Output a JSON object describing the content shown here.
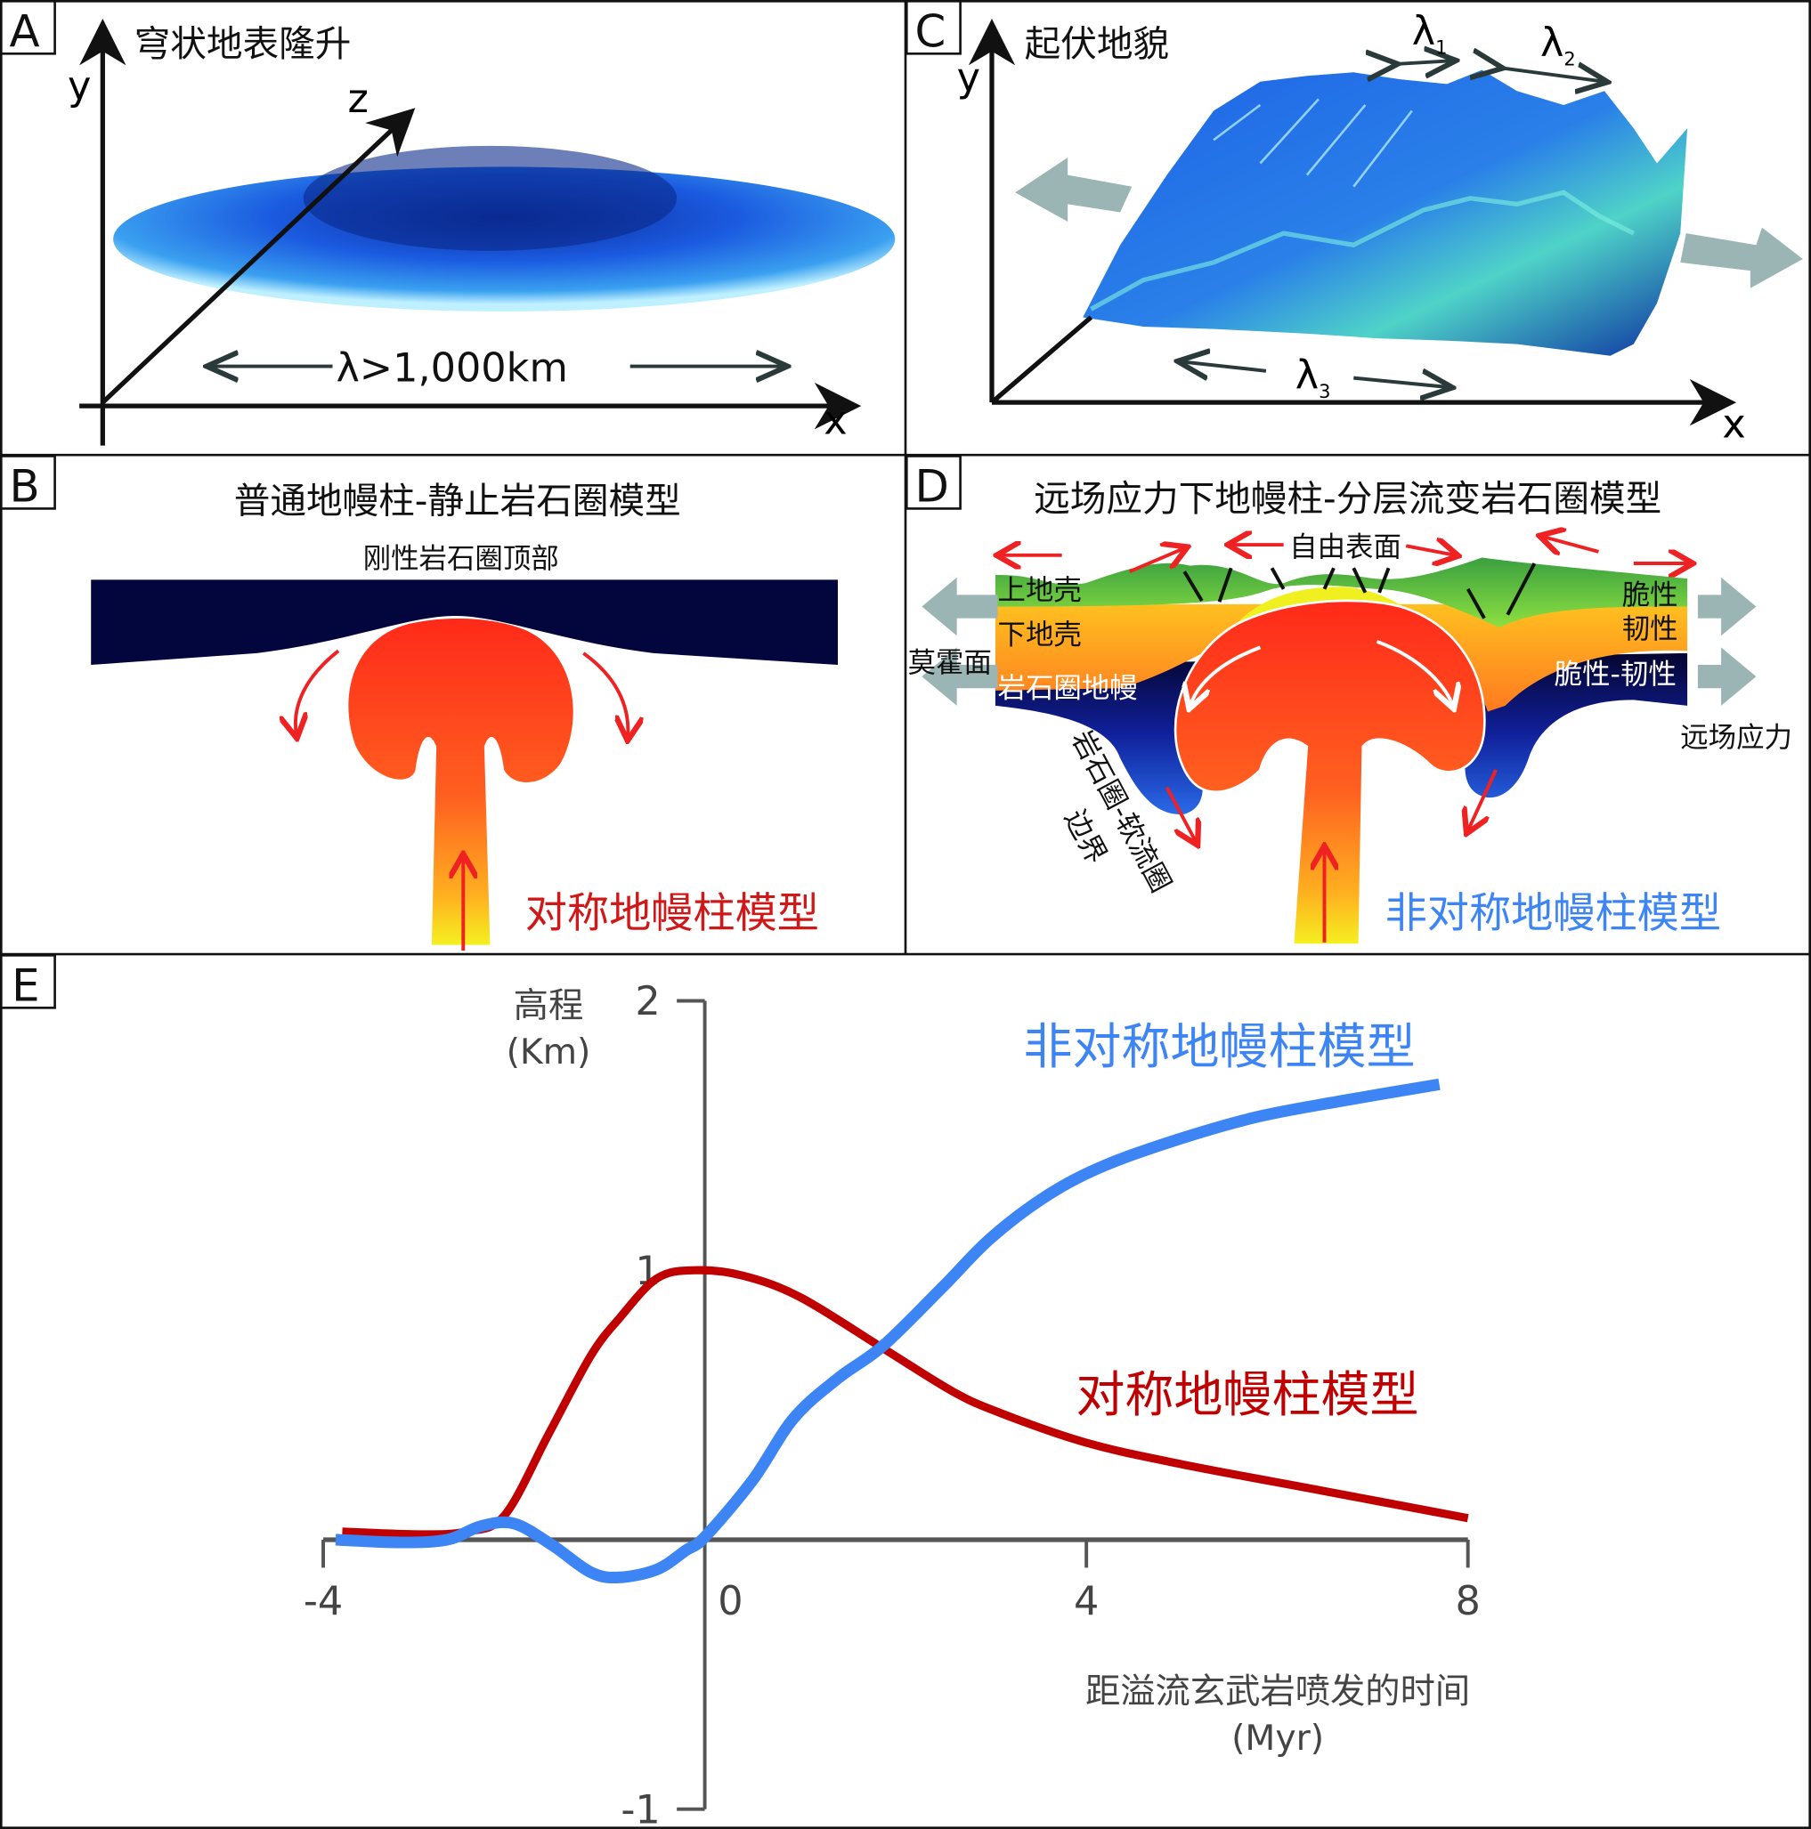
{
  "panels": {
    "A": {
      "letter": "A",
      "title": "穹状地表隆升",
      "axis_y": "y",
      "axis_x": "x",
      "axis_z": "z",
      "wavelength": "λ>1,000km"
    },
    "B": {
      "letter": "B",
      "title": "普通地幔柱-静止岩石圈模型",
      "top_label": "刚性岩石圈顶部",
      "model_label": "对称地幔柱模型"
    },
    "C": {
      "letter": "C",
      "title": "起伏地貌",
      "axis_y": "y",
      "axis_x": "x",
      "lambda1": "λ",
      "lambda1_sub": "1",
      "lambda2": "λ",
      "lambda2_sub": "2",
      "lambda3": "λ",
      "lambda3_sub": "3"
    },
    "D": {
      "letter": "D",
      "title": "远场应力下地幔柱-分层流变岩石圈模型",
      "free_surface": "自由表面",
      "upper_crust": "上地壳",
      "lower_crust": "下地壳",
      "moho": "莫霍面",
      "lith_mantle": "岩石圈地幔",
      "brittle": "脆性",
      "ductile": "韧性",
      "brittle_ductile": "脆性-韧性",
      "far_field": "远场应力",
      "lab_line1": "岩石圈-软流圈",
      "lab_line2": "边界",
      "model_label": "非对称地幔柱模型"
    },
    "E": {
      "letter": "E"
    }
  },
  "colors": {
    "symmetric": "#c00000",
    "asymmetric": "#3d85f5"
  },
  "chart_data": {
    "type": "line",
    "title": "",
    "ylabel_line1": "高程",
    "ylabel_line2": "(Km)",
    "xlabel_line1": "距溢流玄武岩喷发的时间",
    "xlabel_line2": "(Myr)",
    "xlim": [
      -4,
      8
    ],
    "ylim": [
      -1,
      2
    ],
    "xticks": [
      "-4",
      "0",
      "4",
      "8"
    ],
    "yticks": [
      "2",
      "1",
      "-1"
    ],
    "grid": false,
    "series": [
      {
        "name": "对称地幔柱模型",
        "color": "#c00000",
        "x": [
          -3.8,
          -3.0,
          -2.5,
          -2.1,
          -1.64,
          -1.2,
          -0.9,
          -0.5,
          -0.1,
          0.4,
          1.0,
          1.87,
          2.6,
          3.1,
          4.0,
          5.0,
          6.5,
          8.0
        ],
        "y": [
          0.03,
          0.02,
          0.03,
          0.09,
          0.39,
          0.68,
          0.82,
          0.97,
          1.0,
          0.98,
          0.9,
          0.71,
          0.55,
          0.47,
          0.36,
          0.28,
          0.18,
          0.08
        ]
      },
      {
        "name": "非对称地幔柱模型",
        "color": "#3d85f5",
        "x": [
          -3.87,
          -3.2,
          -2.7,
          -2.35,
          -2.0,
          -1.6,
          -1.2,
          -0.9,
          -0.5,
          -0.2,
          0.0,
          0.5,
          0.93,
          1.4,
          1.87,
          2.5,
          3.0,
          3.6,
          4.2,
          5.0,
          5.8,
          6.7,
          7.7
        ],
        "y": [
          0.0,
          -0.01,
          0.0,
          0.05,
          0.06,
          -0.02,
          -0.12,
          -0.14,
          -0.11,
          -0.04,
          0.01,
          0.22,
          0.45,
          0.6,
          0.72,
          0.94,
          1.12,
          1.28,
          1.39,
          1.49,
          1.57,
          1.63,
          1.69
        ]
      }
    ]
  }
}
